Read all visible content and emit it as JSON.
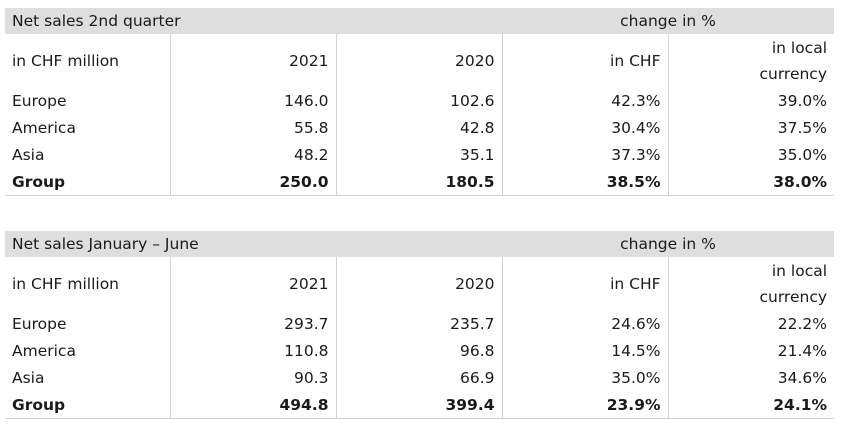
{
  "tables": [
    {
      "title": "Net sales 2nd quarter",
      "change_header": "change in %",
      "unit": "in CHF million",
      "columns": [
        "2021",
        "2020",
        "in CHF",
        "in local",
        "currency"
      ],
      "rows": [
        {
          "label": "Europe",
          "values": [
            "146.0",
            "102.6",
            "42.3%",
            "39.0%"
          ]
        },
        {
          "label": "America",
          "values": [
            "55.8",
            "42.8",
            "30.4%",
            "37.5%"
          ]
        },
        {
          "label": "Asia",
          "values": [
            "48.2",
            "35.1",
            "37.3%",
            "35.0%"
          ]
        },
        {
          "label": "Group",
          "values": [
            "250.0",
            "180.5",
            "38.5%",
            "38.0%"
          ]
        }
      ]
    },
    {
      "title": "Net sales January – June",
      "change_header": "change in %",
      "unit": "in CHF million",
      "columns": [
        "2021",
        "2020",
        "in CHF",
        "in local",
        "currency"
      ],
      "rows": [
        {
          "label": "Europe",
          "values": [
            "293.7",
            "235.7",
            "24.6%",
            "22.2%"
          ]
        },
        {
          "label": "America",
          "values": [
            "110.8",
            "96.8",
            "14.5%",
            "21.4%"
          ]
        },
        {
          "label": "Asia",
          "values": [
            "90.3",
            "66.9",
            "35.0%",
            "34.6%"
          ]
        },
        {
          "label": "Group",
          "values": [
            "494.8",
            "399.4",
            "23.9%",
            "24.1%"
          ]
        }
      ]
    }
  ]
}
